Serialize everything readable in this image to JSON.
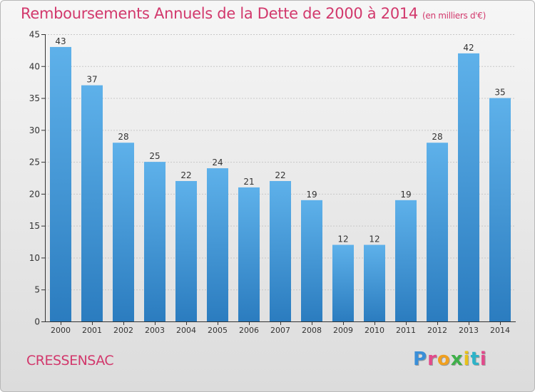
{
  "title": "Remboursements Annuels de la Dette de 2000 à 2014",
  "subtitle": "(en milliers d'€)",
  "commune": "CRESSENSAC",
  "logo": {
    "letters": [
      "P",
      "r",
      "o",
      "x",
      "i",
      "t",
      "i"
    ]
  },
  "colors": {
    "title": "#d2386c",
    "bar_top": "#5eb1ea",
    "bar_bottom": "#2b7cbf",
    "axis": "#333333",
    "grid": "#c8c8c8"
  },
  "chart_data": {
    "type": "bar",
    "categories": [
      "2000",
      "2001",
      "2002",
      "2003",
      "2004",
      "2005",
      "2006",
      "2007",
      "2008",
      "2009",
      "2010",
      "2011",
      "2012",
      "2013",
      "2014"
    ],
    "values": [
      43,
      37,
      28,
      25,
      22,
      24,
      21,
      22,
      19,
      12,
      12,
      19,
      28,
      42,
      35
    ],
    "ylim": [
      0,
      45
    ],
    "yticks": [
      0,
      5,
      10,
      15,
      20,
      25,
      30,
      35,
      40,
      45
    ],
    "grid": true,
    "xlabel": "",
    "ylabel": ""
  }
}
